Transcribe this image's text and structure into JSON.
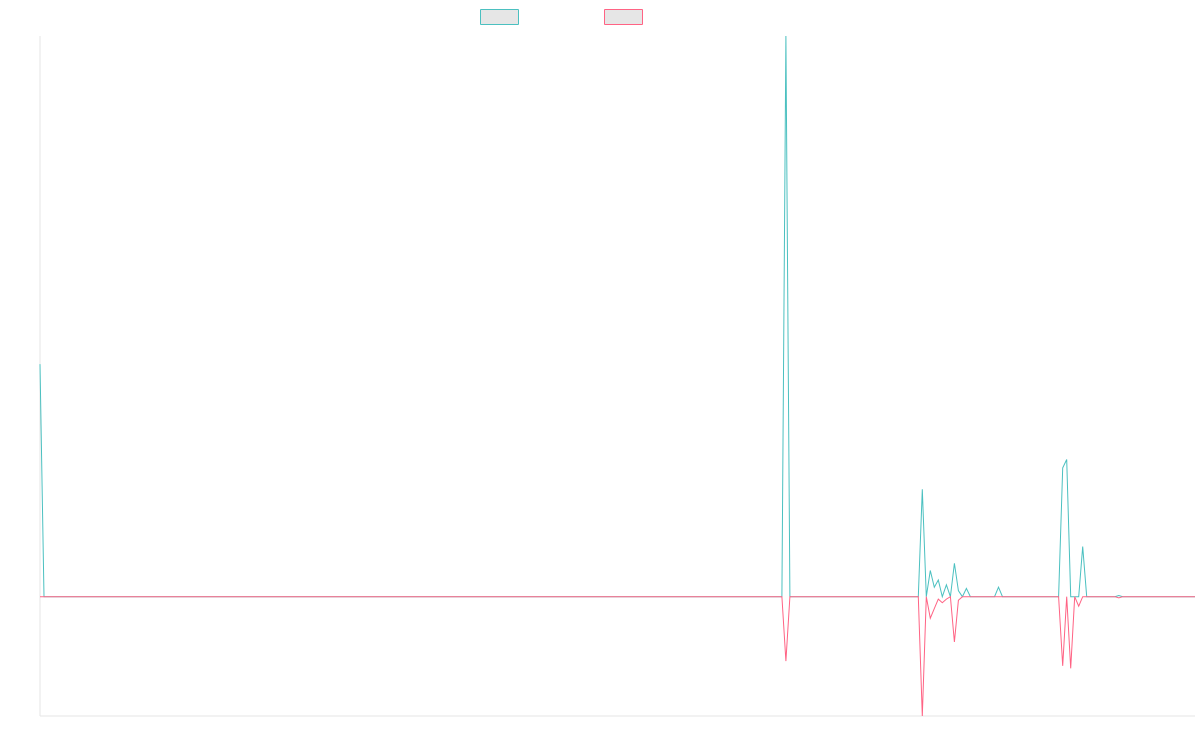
{
  "colors": {
    "series_a": "#4bc0c0",
    "series_b": "#ff6384",
    "legend_fill": "#e6e6e6",
    "axis": "#e5e5e5"
  },
  "chart_data": {
    "type": "line",
    "title": "",
    "xlabel": "",
    "ylabel": "",
    "grid": false,
    "legend": {
      "position": "top",
      "entries": [
        "",
        ""
      ]
    },
    "x_range": [
      0,
      288
    ],
    "ylim": [
      -1,
      4.7
    ],
    "series": [
      {
        "color": "#4bc0c0",
        "points": [
          [
            0,
            1.95
          ],
          [
            1,
            0
          ],
          [
            185,
            0
          ],
          [
            186,
            4.7
          ],
          [
            187,
            0
          ],
          [
            219,
            0
          ],
          [
            220,
            0.9
          ],
          [
            221,
            0
          ],
          [
            222,
            0.22
          ],
          [
            223,
            0.08
          ],
          [
            224,
            0.14
          ],
          [
            225,
            0
          ],
          [
            226,
            0.1
          ],
          [
            227,
            0
          ],
          [
            228,
            0.28
          ],
          [
            229,
            0.05
          ],
          [
            230,
            0
          ],
          [
            231,
            0.07
          ],
          [
            232,
            0
          ],
          [
            238,
            0
          ],
          [
            239,
            0.08
          ],
          [
            240,
            0
          ],
          [
            254,
            0
          ],
          [
            255,
            1.08
          ],
          [
            256,
            1.15
          ],
          [
            257,
            0
          ],
          [
            259,
            0
          ],
          [
            260,
            0.42
          ],
          [
            261,
            0
          ],
          [
            268,
            0
          ],
          [
            269,
            0.01
          ],
          [
            270,
            0
          ],
          [
            288,
            0
          ]
        ]
      },
      {
        "color": "#ff6384",
        "points": [
          [
            0,
            0
          ],
          [
            185,
            0
          ],
          [
            186,
            -0.54
          ],
          [
            187,
            0
          ],
          [
            219,
            0
          ],
          [
            220,
            -1.0
          ],
          [
            221,
            0
          ],
          [
            222,
            -0.18
          ],
          [
            223,
            -0.1
          ],
          [
            224,
            -0.02
          ],
          [
            225,
            -0.05
          ],
          [
            226,
            -0.02
          ],
          [
            227,
            0
          ],
          [
            228,
            -0.38
          ],
          [
            229,
            -0.03
          ],
          [
            230,
            0
          ],
          [
            254,
            0
          ],
          [
            255,
            -0.58
          ],
          [
            256,
            0
          ],
          [
            257,
            -0.6
          ],
          [
            258,
            0
          ],
          [
            259,
            -0.08
          ],
          [
            260,
            0
          ],
          [
            268,
            0
          ],
          [
            269,
            -0.01
          ],
          [
            270,
            0
          ],
          [
            288,
            0
          ]
        ]
      }
    ]
  }
}
